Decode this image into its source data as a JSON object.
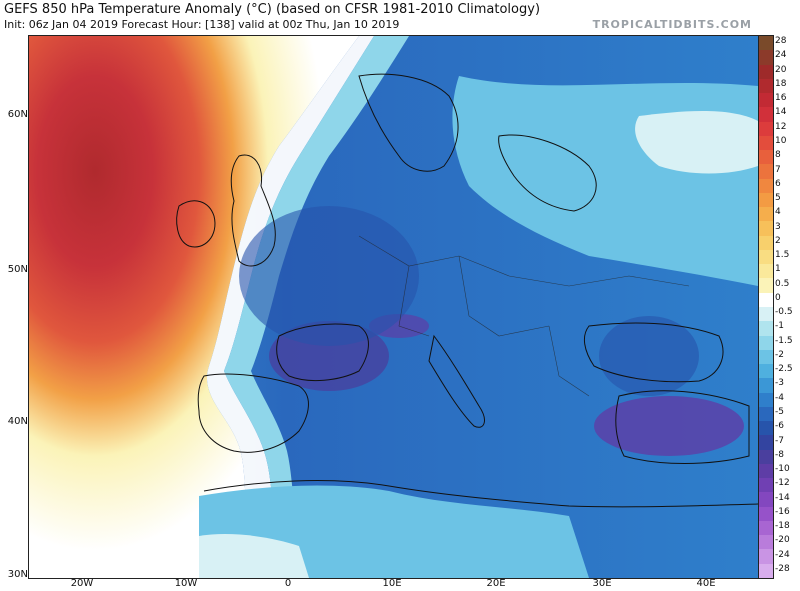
{
  "header": {
    "title": "GEFS 850 hPa Temperature Anomaly (°C) (based on CFSR 1981-2010 Climatology)",
    "subtitle": "Init: 06z Jan 04 2019   Forecast Hour: [138]   valid at 00z Thu, Jan 10 2019",
    "brand": "TROPICALTIDBITS.COM"
  },
  "axes": {
    "lat_labels": [
      "60N",
      "50N",
      "40N",
      "30N"
    ],
    "lon_labels": [
      "20W",
      "10W",
      "0",
      "10E",
      "20E",
      "30E",
      "40E"
    ]
  },
  "colorbar": {
    "labels": [
      "28",
      "24",
      "20",
      "18",
      "16",
      "14",
      "12",
      "10",
      "8",
      "7",
      "6",
      "5",
      "4",
      "3",
      "2",
      "1.5",
      "1",
      "0.5",
      "0",
      "-0.5",
      "-1",
      "-1.5",
      "-2",
      "-2.5",
      "-3",
      "-4",
      "-5",
      "-6",
      "-7",
      "-8",
      "-10",
      "-12",
      "-14",
      "-16",
      "-18",
      "-20",
      "-24",
      "-28"
    ],
    "colors": [
      "#7a4a2a",
      "#8c3a2a",
      "#9e2a2a",
      "#b02a2e",
      "#c22a34",
      "#d1303a",
      "#dc3c3c",
      "#e34d3c",
      "#e8603c",
      "#ec733d",
      "#f0873f",
      "#f39b43",
      "#f5ae4c",
      "#f7c05a",
      "#f8d06c",
      "#f9dd82",
      "#fae99b",
      "#fbf3b8",
      "#ffffff",
      "#d8f1f5",
      "#b0e4ee",
      "#8fd6ea",
      "#6cc3e5",
      "#4fb0df",
      "#3b97d6",
      "#2f7fcb",
      "#2a68bd",
      "#2754ab",
      "#3344a0",
      "#4a3f9e",
      "#5e3da6",
      "#7040b3",
      "#8347bf",
      "#9652c9",
      "#a865d2",
      "#b97cdb",
      "#c994e4",
      "#d8aded"
    ]
  },
  "map_region": "Europe / North Atlantic"
}
